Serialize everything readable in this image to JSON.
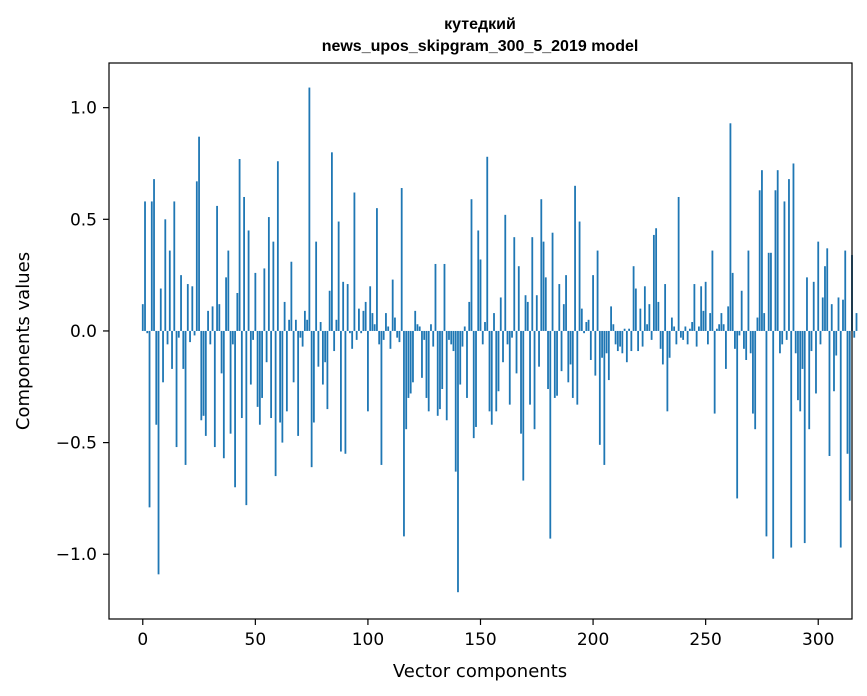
{
  "chart_data": {
    "type": "bar",
    "title_line1": "кутедкий",
    "title_line2": "news_upos_skipgram_300_5_2019 model",
    "xlabel": "Vector components",
    "ylabel": "Components values",
    "xlim": [
      -15,
      315
    ],
    "ylim": [
      -1.29,
      1.2
    ],
    "x_ticks": [
      {
        "value": 0,
        "label": "0"
      },
      {
        "value": 50,
        "label": "50"
      },
      {
        "value": 100,
        "label": "100"
      },
      {
        "value": 150,
        "label": "150"
      },
      {
        "value": 200,
        "label": "200"
      },
      {
        "value": 250,
        "label": "250"
      },
      {
        "value": 300,
        "label": "300"
      }
    ],
    "y_ticks": [
      {
        "value": 1.0,
        "label": "1.0"
      },
      {
        "value": 0.5,
        "label": "0.5"
      },
      {
        "value": 0.0,
        "label": "0.0"
      },
      {
        "value": -0.5,
        "label": "−0.5"
      },
      {
        "value": -1.0,
        "label": "−1.0"
      }
    ],
    "bar_color": "#1f77b4",
    "grid": false,
    "values": [
      0.12,
      0.58,
      -0.01,
      -0.79,
      0.58,
      0.68,
      -0.42,
      -1.09,
      0.19,
      -0.23,
      0.5,
      -0.06,
      0.36,
      -0.17,
      0.58,
      -0.52,
      -0.03,
      0.25,
      -0.17,
      -0.6,
      0.21,
      -0.05,
      0.2,
      -0.02,
      0.67,
      0.87,
      -0.4,
      -0.38,
      -0.47,
      0.09,
      -0.06,
      0.11,
      -0.52,
      0.56,
      0.12,
      -0.19,
      -0.57,
      0.24,
      0.36,
      -0.46,
      -0.06,
      -0.7,
      0.17,
      0.77,
      -0.39,
      0.6,
      -0.78,
      0.45,
      -0.24,
      -0.04,
      0.26,
      -0.34,
      -0.42,
      -0.3,
      0.28,
      -0.14,
      0.51,
      -0.39,
      0.4,
      -0.65,
      0.76,
      -0.41,
      -0.5,
      0.13,
      -0.36,
      0.05,
      0.31,
      -0.23,
      0.05,
      -0.47,
      -0.03,
      -0.07,
      0.09,
      0.05,
      1.09,
      -0.61,
      -0.41,
      0.4,
      -0.16,
      0.04,
      -0.24,
      -0.14,
      -0.35,
      0.18,
      0.8,
      -0.09,
      0.05,
      0.49,
      -0.54,
      0.22,
      -0.55,
      0.21,
      -0.01,
      -0.08,
      0.62,
      -0.04,
      0.1,
      -0.01,
      0.09,
      0.13,
      -0.36,
      0.2,
      0.08,
      0.03,
      0.55,
      -0.06,
      -0.6,
      -0.04,
      0.08,
      0.02,
      -0.08,
      0.23,
      0.06,
      -0.03,
      -0.05,
      0.64,
      -0.92,
      -0.44,
      -0.3,
      -0.28,
      -0.23,
      0.09,
      0.03,
      0.02,
      -0.21,
      -0.04,
      -0.3,
      -0.36,
      0.03,
      -0.07,
      0.3,
      -0.38,
      -0.35,
      -0.26,
      0.3,
      -0.4,
      -0.04,
      -0.06,
      -0.09,
      -0.63,
      -1.17,
      -0.24,
      -0.07,
      0.02,
      -0.3,
      0.13,
      0.59,
      -0.48,
      -0.43,
      0.45,
      0.32,
      -0.06,
      0.04,
      0.78,
      -0.36,
      -0.42,
      0.08,
      -0.36,
      -0.27,
      0.15,
      -0.14,
      0.52,
      -0.06,
      -0.33,
      -0.03,
      0.42,
      -0.19,
      0.29,
      -0.46,
      -0.67,
      0.16,
      0.13,
      -0.33,
      0.42,
      -0.44,
      0.16,
      -0.16,
      0.59,
      0.4,
      0.24,
      -0.26,
      -0.93,
      0.44,
      -0.3,
      -0.29,
      0.21,
      -0.18,
      0.12,
      0.25,
      -0.23,
      -0.15,
      -0.3,
      0.65,
      -0.33,
      0.49,
      0.1,
      -0.01,
      0.04,
      0.05,
      -0.13,
      0.25,
      -0.2,
      0.36,
      -0.51,
      -0.12,
      -0.6,
      -0.1,
      -0.22,
      0.11,
      0.03,
      -0.06,
      -0.09,
      -0.07,
      -0.1,
      0.01,
      -0.14,
      0.01,
      -0.09,
      0.29,
      0.19,
      -0.09,
      0.1,
      -0.07,
      0.2,
      0.03,
      0.12,
      -0.04,
      0.43,
      0.46,
      0.13,
      -0.08,
      -0.15,
      0.21,
      -0.36,
      -0.12,
      0.06,
      0.02,
      -0.06,
      0.6,
      -0.03,
      -0.04,
      0.02,
      -0.06,
      0.01,
      0.04,
      0.21,
      -0.07,
      0.02,
      0.2,
      0.09,
      0.22,
      -0.06,
      0.08,
      0.36,
      -0.37,
      0.01,
      0.03,
      0.08,
      0.03,
      -0.17,
      0.11,
      0.93,
      0.26,
      -0.08,
      -0.75,
      -0.02,
      0.18,
      -0.08,
      -0.13,
      0.36,
      -0.1,
      -0.37,
      -0.44,
      0.06,
      0.63,
      0.72,
      0.08,
      -0.92,
      0.35,
      0.35,
      -1.02,
      0.63,
      0.72,
      -0.1,
      -0.06,
      0.58,
      -0.04,
      0.68,
      -0.97,
      0.75,
      -0.1,
      -0.31,
      -0.36,
      -0.17,
      -0.95,
      0.24,
      -0.44,
      -0.09,
      0.22,
      -0.28,
      0.4,
      -0.06,
      0.15,
      0.29,
      0.37,
      -0.56,
      0.12,
      -0.27,
      -0.11,
      0.15,
      -0.97,
      0.14,
      0.36,
      -0.55,
      -0.76,
      0.34,
      -0.03,
      0.08
    ]
  }
}
